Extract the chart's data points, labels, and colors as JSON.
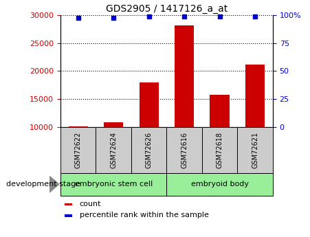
{
  "title": "GDS2905 / 1417126_a_at",
  "samples": [
    "GSM72622",
    "GSM72624",
    "GSM72626",
    "GSM72616",
    "GSM72618",
    "GSM72621"
  ],
  "counts": [
    10100,
    10800,
    18000,
    28200,
    15800,
    21200
  ],
  "percentiles": [
    98,
    98,
    99,
    99,
    99,
    99
  ],
  "ylim_left": [
    10000,
    30000
  ],
  "ylim_right": [
    0,
    100
  ],
  "yticks_left": [
    10000,
    15000,
    20000,
    25000,
    30000
  ],
  "yticks_right": [
    0,
    25,
    50,
    75,
    100
  ],
  "bar_color": "#cc0000",
  "dot_color": "#0000cc",
  "group1_label": "embryonic stem cell",
  "group2_label": "embryoid body",
  "group1_indices": [
    0,
    1,
    2
  ],
  "group2_indices": [
    3,
    4,
    5
  ],
  "group_bg_color": "#99ee99",
  "sample_label_bg": "#cccccc",
  "label_color_left": "#cc0000",
  "label_color_right": "#0000cc",
  "dev_stage_label": "development stage",
  "legend_count": "count",
  "legend_percentile": "percentile rank within the sample",
  "bar_width": 0.55
}
